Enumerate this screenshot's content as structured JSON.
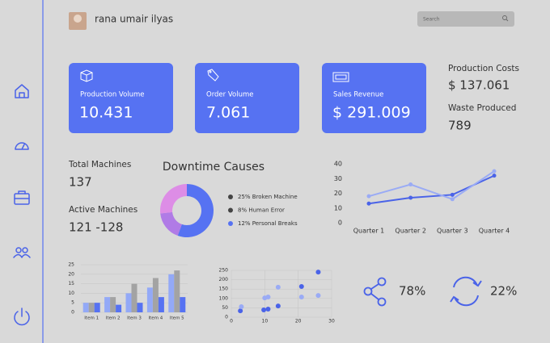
{
  "header": {
    "user_name": "rana umair ilyas",
    "search_placeholder": "Search"
  },
  "cards": [
    {
      "title": "Production Volume",
      "value": "10.431"
    },
    {
      "title": "Order Volume",
      "value": "7.061"
    },
    {
      "title": "Sales Revenue",
      "value": "$ 291.009"
    }
  ],
  "stats": [
    {
      "label": "Production Costs",
      "value": "$ 137.061"
    },
    {
      "label": "Waste Produced",
      "value": "789"
    },
    {
      "label": "Total Machines",
      "value": "137"
    },
    {
      "label": "Active Machines",
      "value": "121 -128"
    }
  ],
  "chart_data": [
    {
      "type": "pie",
      "title": "Downtime Causes",
      "categories": [
        "25% Broken Machine",
        "8% Human Error",
        "12% Personal Breaks"
      ],
      "values": [
        25,
        8,
        12
      ],
      "colors": [
        "#5672f2",
        "#b07be6",
        "#dd8de6"
      ],
      "legend_colors": [
        "#444444",
        "#444444",
        "#5672f2"
      ]
    },
    {
      "type": "line",
      "categories": [
        "Quarter 1",
        "Quarter 2",
        "Quarter 3",
        "Quarter 4"
      ],
      "series": [
        {
          "color": "#4a63e8",
          "values": [
            13,
            17,
            19,
            32
          ]
        },
        {
          "color": "#9aabf5",
          "values": [
            18,
            26,
            16,
            35
          ]
        }
      ],
      "ylim": [
        0,
        40
      ],
      "yticks": [
        0,
        10,
        20,
        30,
        40
      ]
    },
    {
      "type": "bar",
      "categories": [
        "Item 1",
        "Item 2",
        "Item 3",
        "Item 4",
        "Item 5"
      ],
      "series": [
        {
          "color": "#93a9f7",
          "values": [
            5,
            8,
            10,
            13,
            20
          ]
        },
        {
          "color": "#a3a3a3",
          "values": [
            5,
            8,
            15,
            18,
            22
          ]
        },
        {
          "color": "#5672f2",
          "values": [
            5,
            4,
            5,
            8,
            8
          ]
        }
      ],
      "ylim": [
        0,
        25
      ],
      "yticks": [
        0,
        5,
        10,
        15,
        20,
        25
      ],
      "grid": true
    },
    {
      "type": "scatter",
      "series": [
        {
          "color": "#4a63e8",
          "x": [
            2.7,
            9.7,
            11,
            14,
            21,
            26
          ],
          "values": [
            34,
            39,
            43,
            60,
            164,
            241
          ]
        },
        {
          "color": "#9aabf5",
          "x": [
            3,
            10,
            11,
            14,
            21,
            26
          ],
          "values": [
            56,
            103,
            108,
            160,
            108,
            116
          ]
        }
      ],
      "xlim": [
        0,
        30
      ],
      "xticks": [
        0,
        10,
        20,
        30
      ],
      "ylim": [
        0,
        250
      ],
      "yticks": [
        0,
        50,
        100,
        150,
        200,
        250
      ],
      "grid": true
    }
  ],
  "share": {
    "value": "78%"
  },
  "refresh": {
    "value": "22%"
  }
}
